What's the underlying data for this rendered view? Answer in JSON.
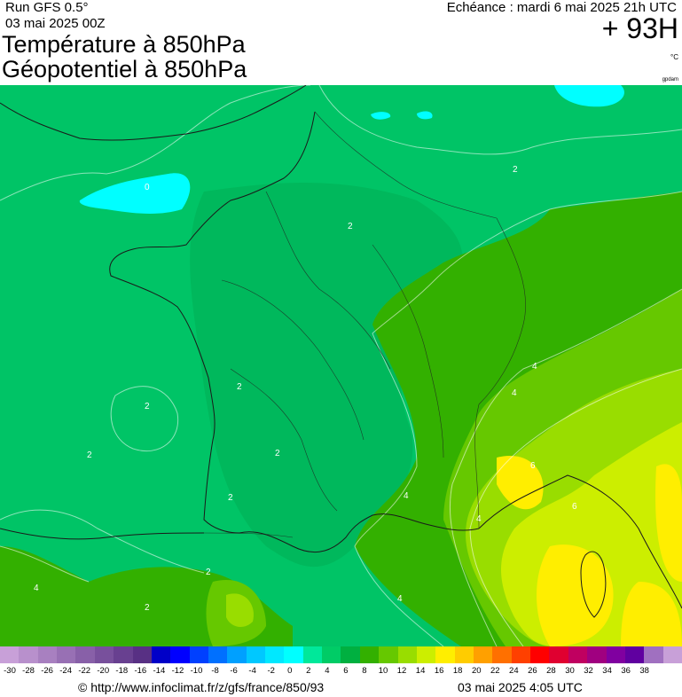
{
  "header": {
    "run": "Run GFS 0.5°",
    "date": "03 mai 2025 00Z",
    "title_line1": "Température à 850hPa",
    "title_line2": "Géopotentiel à 850hPa",
    "echeance": "Echéance : mardi 6 mai 2025 21h UTC",
    "forecast_hour": "+ 93H",
    "unit": "°C",
    "credit": "gpdam"
  },
  "map": {
    "contour_labels": [
      "0",
      "2",
      "2",
      "2",
      "2",
      "2",
      "2",
      "2",
      "2",
      "2",
      "4",
      "4",
      "4",
      "4",
      "4",
      "4",
      "6",
      "6"
    ],
    "colors": {
      "t0": "#00ffff",
      "t2": "#00cc66",
      "t2b": "#00b85c",
      "t4": "#33b000",
      "t6": "#66cc00",
      "t8": "#99dd00",
      "t10": "#ccee00",
      "t12": "#ffee00"
    }
  },
  "color_scale": {
    "tick_labels": [
      "-30",
      "-28",
      "-26",
      "-24",
      "-22",
      "-20",
      "-18",
      "-16",
      "-14",
      "-12",
      "-10",
      "-8",
      "-6",
      "-4",
      "-2",
      "0",
      "2",
      "4",
      "6",
      "8",
      "10",
      "12",
      "14",
      "16",
      "18",
      "20",
      "22",
      "24",
      "26",
      "28",
      "30",
      "32",
      "34",
      "36",
      "38"
    ],
    "colors": [
      "#c8a0d8",
      "#b890cc",
      "#a880c0",
      "#9870b4",
      "#8860a8",
      "#78509c",
      "#684090",
      "#583084",
      "#0000c8",
      "#0000ff",
      "#0040ff",
      "#0070ff",
      "#00a0ff",
      "#00c8ff",
      "#00e8ff",
      "#00ffff",
      "#00e89a",
      "#00cc66",
      "#00b040",
      "#33b000",
      "#66c800",
      "#99dd00",
      "#ccee00",
      "#ffee00",
      "#ffcc00",
      "#ffa000",
      "#ff7000",
      "#ff4000",
      "#ff0000",
      "#e00030",
      "#c00060",
      "#a00080",
      "#8000a0",
      "#6000a0",
      "#a070c0",
      "#c8a0d8"
    ]
  },
  "footer": {
    "url": "© http://www.infoclimat.fr/z/gfs/france/850/93",
    "timestamp": "03 mai 2025  4:05 UTC"
  }
}
